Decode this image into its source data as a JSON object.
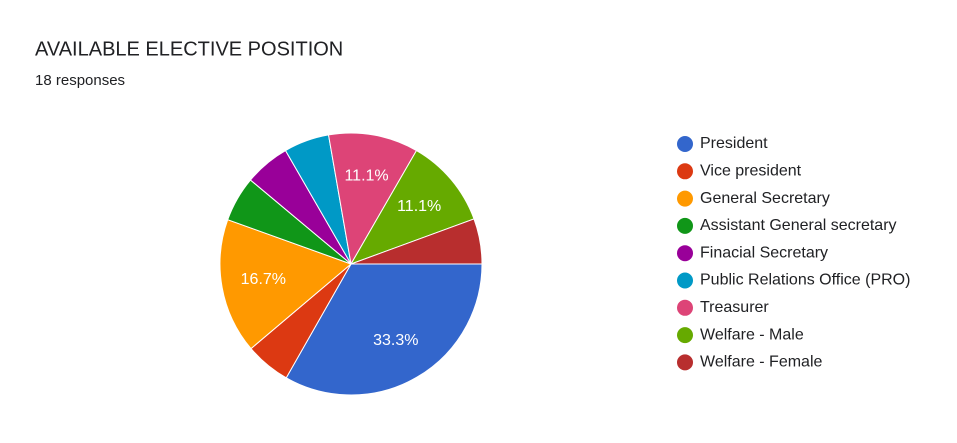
{
  "chart_data": {
    "type": "pie",
    "title": "AVAILABLE ELECTIVE POSITION",
    "subtitle": "18 responses",
    "categories": [
      "President",
      "Vice president",
      "General Secretary",
      "Assistant General secretary",
      "Finacial Secretary",
      "Public Relations Office (PRO)",
      "Treasurer",
      "Welfare - Male",
      "Welfare - Female"
    ],
    "values": [
      33.3,
      5.6,
      16.7,
      5.6,
      5.6,
      5.6,
      11.1,
      11.1,
      5.6
    ],
    "value_labels": [
      "33.3%",
      null,
      "16.7%",
      null,
      null,
      null,
      "11.1%",
      "11.1%",
      null
    ],
    "colors": [
      "#3366cc",
      "#dc3912",
      "#ff9900",
      "#109618",
      "#990099",
      "#0099c6",
      "#dd4477",
      "#66aa00",
      "#b82e2e"
    ],
    "legend": "right"
  }
}
